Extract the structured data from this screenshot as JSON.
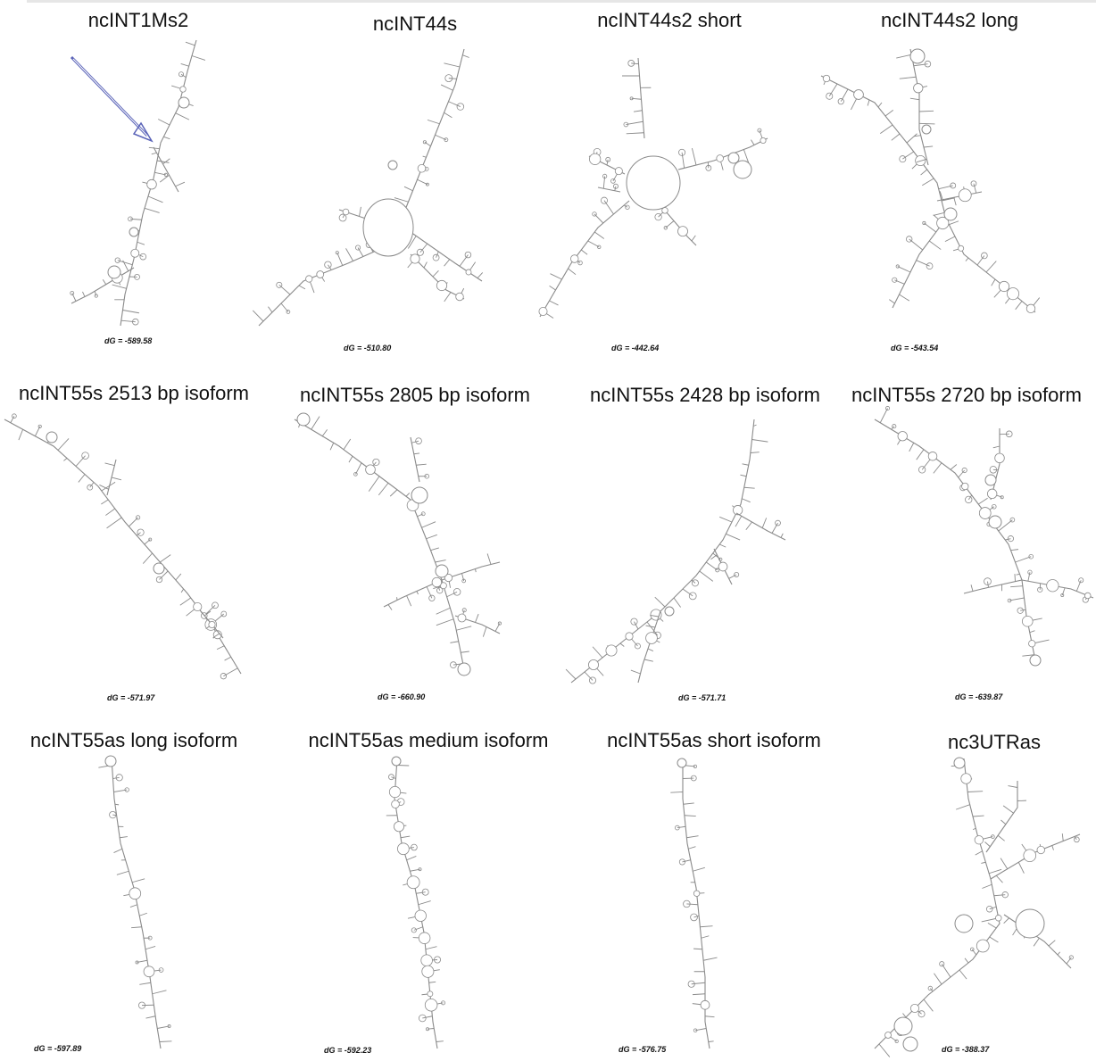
{
  "panels": [
    {
      "title": "ncINT1Ms2",
      "dG": "dG = -589.58"
    },
    {
      "title": "ncINT44s",
      "dG": "dG = -510.80"
    },
    {
      "title": "ncINT44s2 short",
      "dG": "dG = -442.64"
    },
    {
      "title": "ncINT44s2 long",
      "dG": "dG = -543.54"
    },
    {
      "title": "ncINT55s 2513 bp isoform",
      "dG": "dG = -571.97"
    },
    {
      "title": "ncINT55s 2805 bp isoform",
      "dG": "dG = -660.90"
    },
    {
      "title": "ncINT55s 2428 bp isoform",
      "dG": "dG = -571.71"
    },
    {
      "title": "ncINT55s 2720 bp isoform",
      "dG": "dG = -639.87"
    },
    {
      "title": "ncINT55as long isoform",
      "dG": "dG = -597.89"
    },
    {
      "title": "ncINT55as medium isoform",
      "dG": "dG = -592.23"
    },
    {
      "title": "ncINT55as short isoform",
      "dG": "dG = -576.75"
    },
    {
      "title": "nc3UTRas",
      "dG": "dG = -388.37"
    }
  ],
  "colors": {
    "structure_stroke": "#8a8a8a",
    "arrow": "#5a63b8"
  }
}
